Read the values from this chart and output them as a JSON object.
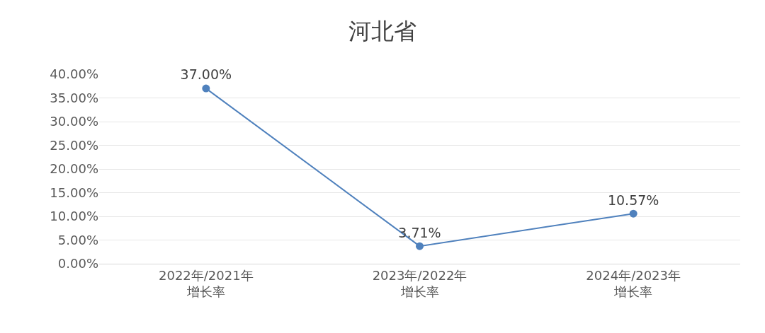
{
  "chart_data": {
    "type": "line",
    "title": "河北省",
    "categories": [
      "2022年/2021年增长率",
      "2023年/2022年增长率",
      "2024年/2023年增长率"
    ],
    "series": [
      {
        "color": "#4f81bd",
        "values": [
          37.0,
          3.71,
          10.57
        ],
        "value_labels": [
          "37.00%",
          "3.71%",
          "10.57%"
        ]
      }
    ],
    "ylim": [
      0,
      40
    ],
    "yticks": [
      {
        "value": 0,
        "label": "0.00%"
      },
      {
        "value": 5,
        "label": "5.00%"
      },
      {
        "value": 10,
        "label": "10.00%"
      },
      {
        "value": 15,
        "label": "15.00%"
      },
      {
        "value": 20,
        "label": "20.00%"
      },
      {
        "value": 25,
        "label": "25.00%"
      },
      {
        "value": 30,
        "label": "30.00%"
      },
      {
        "value": 35,
        "label": "35.00%"
      },
      {
        "value": 40,
        "label": "40.00%"
      }
    ],
    "grid": "y",
    "legend": false,
    "marker": "circle",
    "line_style": "solid"
  }
}
